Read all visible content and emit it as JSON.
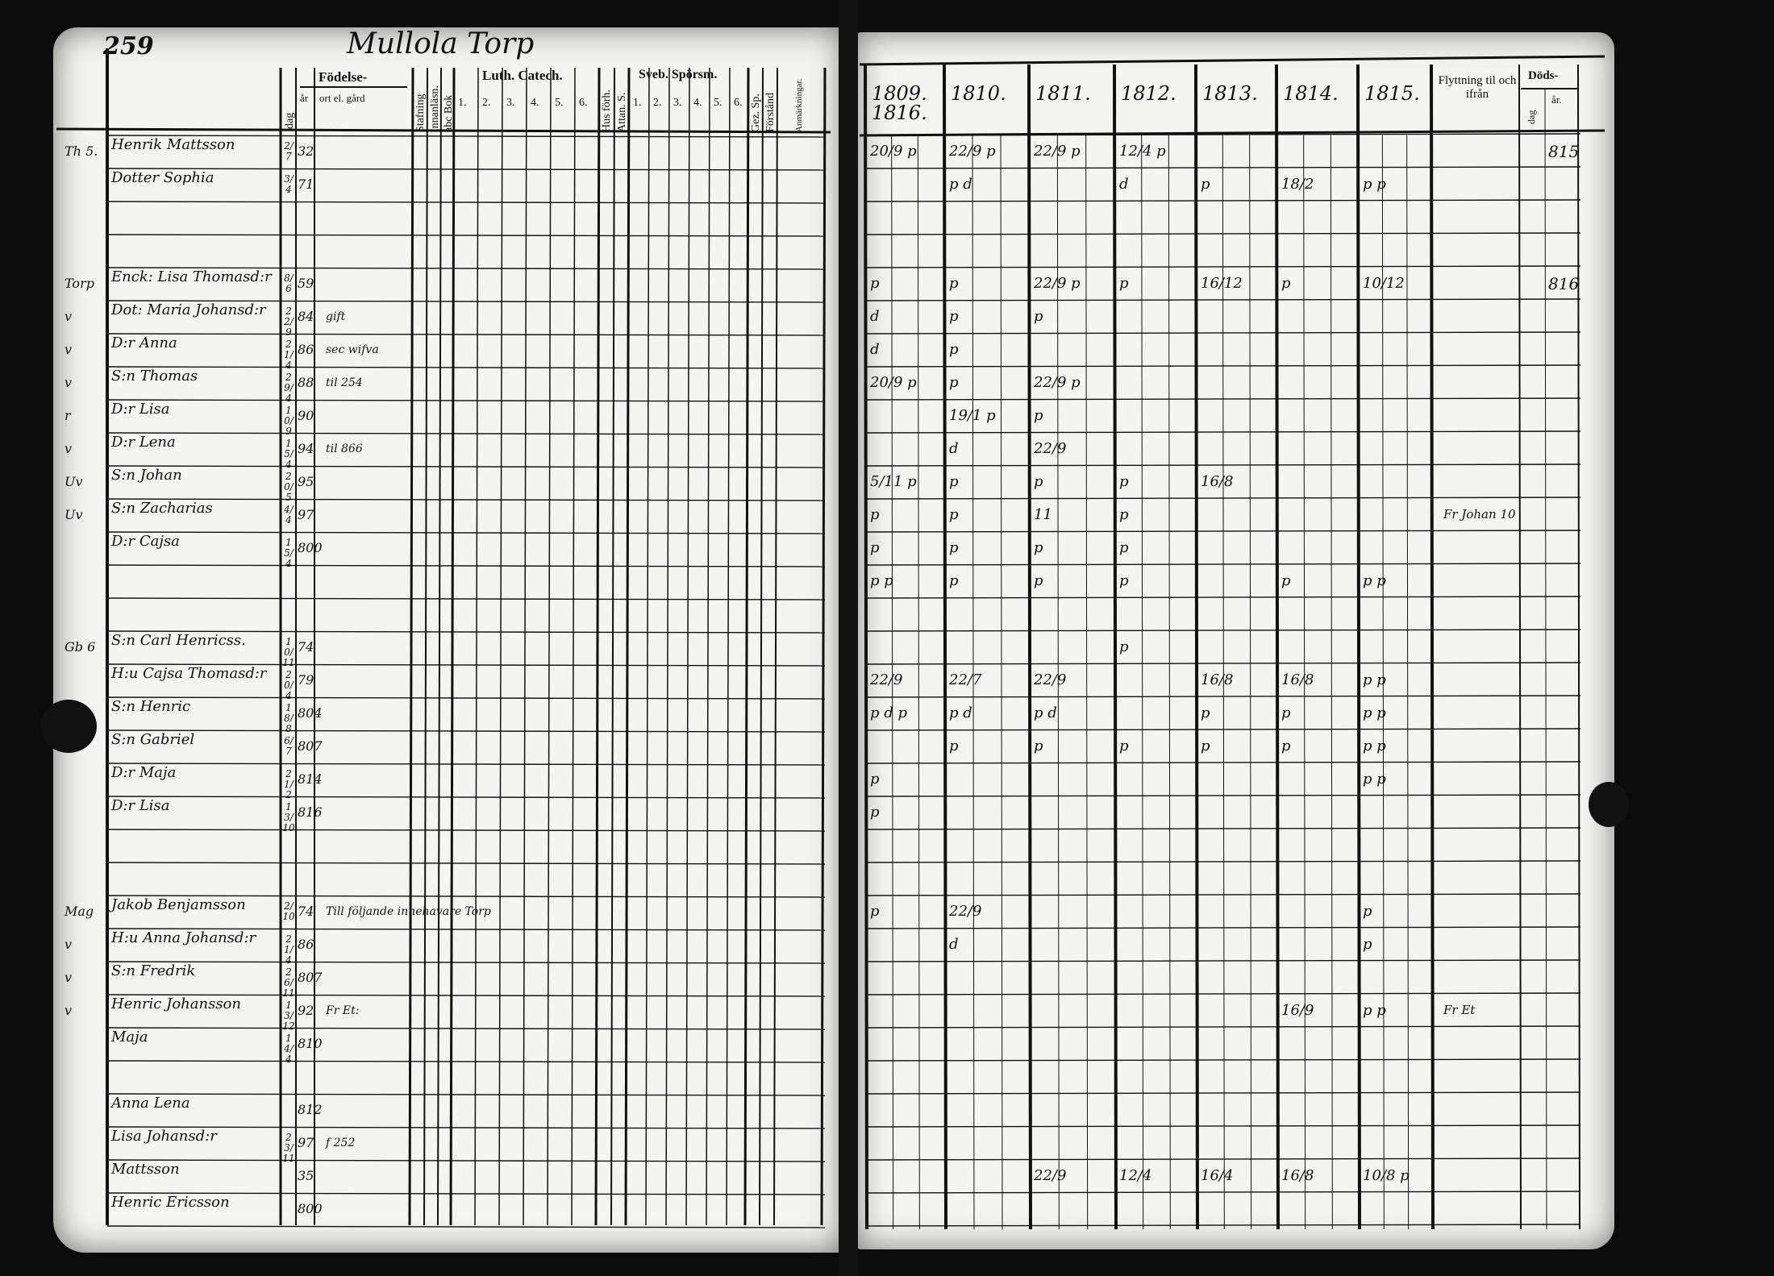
{
  "left_page": {
    "page_number": "259",
    "title": "Mullola Torp",
    "headers": {
      "fodelse": "Födelse-",
      "dag": "dag",
      "ar": "år",
      "ort": "ort el. gård",
      "stafning": "Stafning",
      "inlasning": "Innanläsn.",
      "abc": "abc Bok",
      "luth": "Luth. Catech.",
      "luth_sub": [
        "1.",
        "2.",
        "3.",
        "4.",
        "5.",
        "6."
      ],
      "husforh": "Hus förh.",
      "attan": "Attan. S.",
      "sveb": "Sveb. Spörsm.",
      "sveb_sub": [
        "1.",
        "2.",
        "3.",
        "4.",
        "5.",
        "6."
      ],
      "gez": "Gez. Sp.",
      "forstand": "Förstånd",
      "anm": "Anmärkningar."
    }
  },
  "right_page": {
    "years": [
      "1809. 1816.",
      "1810.",
      "1811.",
      "1812.",
      "1813.",
      "1814.",
      "1815."
    ],
    "flyttning": "Flyttning til och ifrån",
    "doods": "Döds-",
    "doods_dag": "dag",
    "doods_ar": "år."
  },
  "rows": [
    {
      "mark": "Th 5.",
      "name": "Henrik Mattsson",
      "dag": "2/7",
      "ar": "32",
      "note": "",
      "years": {
        "1809": "20/9 p",
        "1810": "22/9 p",
        "1811": "22/9 p",
        "1812": "12/4 p"
      },
      "death": "815"
    },
    {
      "mark": "",
      "name": "Dotter Sophia",
      "dag": "3/4",
      "ar": "71",
      "note": "",
      "years": {
        "1810": "p d",
        "1812": "d",
        "1813": "p",
        "1814": "18/2",
        "1815": "p p"
      }
    },
    {
      "mark": "",
      "name": "",
      "dag": "",
      "ar": "",
      "note": "",
      "years": {}
    },
    {
      "mark": "",
      "name": "",
      "dag": "",
      "ar": "",
      "note": "",
      "years": {}
    },
    {
      "mark": "Torp",
      "name": "Enck: Lisa Thomasd:r",
      "dag": "8/6",
      "ar": "59",
      "note": "",
      "years": {
        "1809": "p",
        "1810": "p",
        "1811": "22/9 p",
        "1812": "p",
        "1813": "16/12",
        "1814": "p",
        "1815": "10/12"
      },
      "death": "816"
    },
    {
      "mark": "v",
      "name": "Dot: Maria Johansd:r",
      "dag": "22/9",
      "ar": "84",
      "note": "gift",
      "years": {
        "1809": "d",
        "1810": "p",
        "1811": "p"
      }
    },
    {
      "mark": "v",
      "name": "D:r Anna",
      "dag": "21/4",
      "ar": "86",
      "note": "sec wifva",
      "years": {
        "1809": "d",
        "1810": "p"
      }
    },
    {
      "mark": "v",
      "name": "S:n Thomas",
      "dag": "29/4",
      "ar": "88",
      "note": "til 254",
      "years": {
        "1809": "20/9 p",
        "1810": "p",
        "1811": "22/9 p"
      }
    },
    {
      "mark": "r",
      "name": "D:r Lisa",
      "dag": "10/9",
      "ar": "90",
      "note": "",
      "years": {
        "1810": "19/1 p",
        "1811": "p"
      }
    },
    {
      "mark": "v",
      "name": "D:r Lena",
      "dag": "15/4",
      "ar": "94",
      "note": "til 866",
      "years": {
        "1810": "d",
        "1811": "22/9"
      }
    },
    {
      "mark": "Uv",
      "name": "S:n Johan",
      "dag": "20/5",
      "ar": "95",
      "note": "",
      "years": {
        "1809": "5/11 p",
        "1810": "p",
        "1811": "p",
        "1812": "p",
        "1813": "16/8"
      }
    },
    {
      "mark": "Uv",
      "name": "S:n Zacharias",
      "dag": "4/4",
      "ar": "97",
      "note": "",
      "years": {
        "1809": "p",
        "1810": "p",
        "1811": "11",
        "1812": "p"
      },
      "flytt": "Fr Johan 10"
    },
    {
      "mark": "",
      "name": "D:r Cajsa",
      "dag": "15/4",
      "ar": "800",
      "note": "",
      "years": {
        "1809": "p",
        "1810": "p",
        "1811": "p",
        "1812": "p"
      }
    },
    {
      "mark": "",
      "name": "",
      "dag": "",
      "ar": "",
      "note": "",
      "years": {
        "1809": "p p",
        "1810": "p",
        "1811": "p",
        "1812": "p",
        "1814": "p",
        "1815": "p p"
      }
    },
    {
      "mark": "",
      "name": "",
      "dag": "",
      "ar": "",
      "note": "",
      "years": {}
    },
    {
      "mark": "Gb 6",
      "name": "S:n Carl Henricss.",
      "dag": "10/11",
      "ar": "74",
      "note": "",
      "years": {
        "1812": "p"
      }
    },
    {
      "mark": "",
      "name": "H:u Cajsa Thomasd:r",
      "dag": "20/4",
      "ar": "79",
      "note": "",
      "years": {
        "1809": "22/9",
        "1810": "22/7",
        "1811": "22/9",
        "1813": "16/8",
        "1814": "16/8",
        "1815": "p p"
      }
    },
    {
      "mark": "",
      "name": "S:n Henric",
      "dag": "18/8",
      "ar": "804",
      "note": "",
      "years": {
        "1809": "p d p",
        "1810": "p d",
        "1811": "p d",
        "1813": "p",
        "1814": "p",
        "1815": "p p"
      }
    },
    {
      "mark": "",
      "name": "S:n Gabriel",
      "dag": "6/7",
      "ar": "807",
      "note": "",
      "years": {
        "1810": "p",
        "1811": "p",
        "1812": "p",
        "1813": "p",
        "1814": "p",
        "1815": "p p"
      }
    },
    {
      "mark": "",
      "name": "D:r Maja",
      "dag": "21/2",
      "ar": "814",
      "note": "",
      "years": {
        "1809": "p",
        "1815": "p p"
      }
    },
    {
      "mark": "",
      "name": "D:r Lisa",
      "dag": "13/10",
      "ar": "816",
      "note": "",
      "years": {
        "1809": "p"
      }
    },
    {
      "mark": "",
      "name": "",
      "dag": "",
      "ar": "",
      "note": "",
      "years": {}
    },
    {
      "mark": "",
      "name": "",
      "dag": "",
      "ar": "",
      "note": "",
      "years": {}
    },
    {
      "mark": "Mag",
      "name": "Jakob Benjamsson",
      "dag": "2/10",
      "ar": "74",
      "note": "Till följande innehavare Torp",
      "years": {
        "1809": "p",
        "1810": "22/9",
        "1815": "p"
      }
    },
    {
      "mark": "v",
      "name": "H:u Anna Johansd:r",
      "dag": "21/4",
      "ar": "86",
      "note": "",
      "years": {
        "1810": "d",
        "1815": "p"
      }
    },
    {
      "mark": "v",
      "name": "S:n Fredrik",
      "dag": "26/11",
      "ar": "807",
      "note": "",
      "years": {}
    },
    {
      "mark": "v",
      "name": "Henric Johansson",
      "dag": "13/12",
      "ar": "92",
      "note": "Fr Et:",
      "years": {
        "1814": "16/9",
        "1815": "p p"
      },
      "flytt": "Fr Et"
    },
    {
      "mark": "",
      "name": "Maja",
      "dag": "14/4",
      "ar": "810",
      "note": "",
      "years": {}
    },
    {
      "mark": "",
      "name": "",
      "dag": "",
      "ar": "",
      "note": "",
      "years": {}
    },
    {
      "mark": "",
      "name": "Anna Lena",
      "dag": "",
      "ar": "812",
      "note": "",
      "years": {}
    },
    {
      "mark": "",
      "name": "Lisa Johansd:r",
      "dag": "23/11",
      "ar": "97",
      "note": "f 252",
      "years": {}
    },
    {
      "mark": "",
      "name": "Mattsson",
      "dag": "",
      "ar": "35",
      "note": "",
      "years": {
        "1811": "22/9",
        "1812": "12/4",
        "1813": "16/4",
        "1814": "16/8",
        "1815": "10/8 p"
      }
    },
    {
      "mark": "",
      "name": "Henric Ericsson",
      "dag": "",
      "ar": "800",
      "note": "",
      "years": {}
    }
  ]
}
